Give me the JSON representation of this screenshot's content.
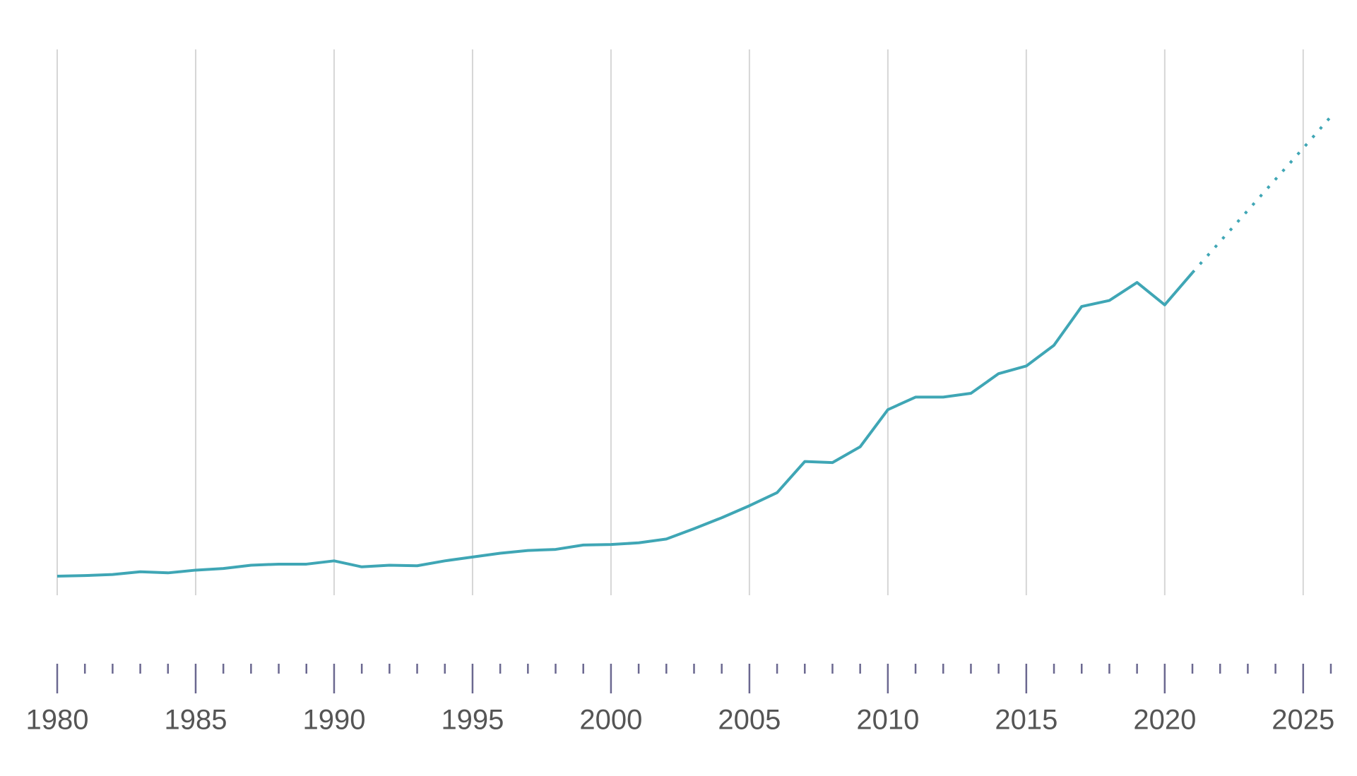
{
  "chart_data": {
    "type": "line",
    "x": [
      1980,
      1981,
      1982,
      1983,
      1984,
      1985,
      1986,
      1987,
      1988,
      1989,
      1990,
      1991,
      1992,
      1993,
      1994,
      1995,
      1996,
      1997,
      1998,
      1999,
      2000,
      2001,
      2002,
      2003,
      2004,
      2005,
      2006,
      2007,
      2008,
      2009,
      2010,
      2011,
      2012,
      2013,
      2014,
      2015,
      2016,
      2017,
      2018,
      2019,
      2020,
      2021,
      2022,
      2023,
      2024,
      2025,
      2026
    ],
    "series": [
      {
        "color": "#3fa6b5",
        "dashed": false,
        "values": [
          3.5,
          3.6,
          3.8,
          4.3,
          4.1,
          4.6,
          4.9,
          5.5,
          5.7,
          5.7,
          6.3,
          5.2,
          5.5,
          5.4,
          6.3,
          7.0,
          7.7,
          8.2,
          8.4,
          9.2,
          9.3,
          9.6,
          10.3,
          12.2,
          14.2,
          16.4,
          18.8,
          24.5,
          24.3,
          27.2,
          34.0,
          36.3,
          36.3,
          37.0,
          40.6,
          42.0,
          45.8,
          52.9,
          54.0,
          57.3,
          53.2,
          59.1,
          null,
          null,
          null,
          null,
          null
        ]
      },
      {
        "color": "#3fa6b5",
        "dashed": true,
        "values": [
          null,
          null,
          null,
          null,
          null,
          null,
          null,
          null,
          null,
          null,
          null,
          null,
          null,
          null,
          null,
          null,
          null,
          null,
          null,
          null,
          null,
          null,
          null,
          null,
          null,
          null,
          null,
          null,
          null,
          null,
          null,
          null,
          null,
          null,
          null,
          null,
          null,
          null,
          null,
          null,
          null,
          59.1,
          64.8,
          70.5,
          76.2,
          81.9,
          87.7
        ]
      }
    ],
    "xlim": [
      1980,
      2026
    ],
    "xticks": [
      1980,
      1985,
      1990,
      1995,
      2000,
      2005,
      2010,
      2015,
      2020,
      2025
    ],
    "xminorticks": [
      1981,
      1982,
      1983,
      1984,
      1986,
      1987,
      1988,
      1989,
      1991,
      1992,
      1993,
      1994,
      1996,
      1997,
      1998,
      1999,
      2001,
      2002,
      2003,
      2004,
      2006,
      2007,
      2008,
      2009,
      2011,
      2012,
      2013,
      2014,
      2016,
      2017,
      2018,
      2019,
      2021,
      2022,
      2023,
      2024,
      2026
    ],
    "ylim": [
      0,
      100
    ],
    "grid": true
  }
}
